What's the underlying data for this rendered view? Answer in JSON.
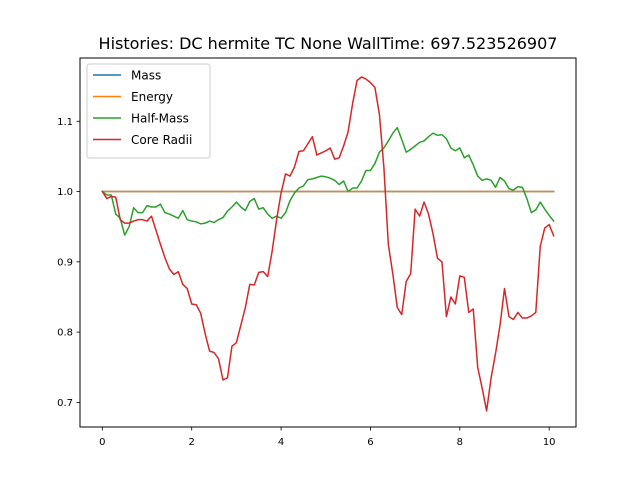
{
  "chart_data": {
    "type": "line",
    "title": "Histories: DC hermite TC None WallTime: 697.523526907",
    "xlabel": "",
    "ylabel": "",
    "xlim": [
      -0.5,
      10.6
    ],
    "ylim": [
      0.665,
      1.19
    ],
    "xticks": [
      0,
      2,
      4,
      6,
      8,
      10
    ],
    "yticks": [
      0.7,
      0.8,
      0.9,
      1.0,
      1.1
    ],
    "xtick_labels": [
      "0",
      "2",
      "4",
      "6",
      "8",
      "10"
    ],
    "ytick_labels": [
      "0.7",
      "0.8",
      "0.9",
      "1.0",
      "1.1"
    ],
    "grid": false,
    "legend_position": "top-left",
    "series": [
      {
        "name": "Mass",
        "color": "#1f77b4",
        "points": [
          [
            0,
            1.0
          ],
          [
            10.1,
            1.0
          ]
        ]
      },
      {
        "name": "Energy",
        "color": "#ff7f0e",
        "points": [
          [
            0,
            1.0
          ],
          [
            10.1,
            1.0
          ]
        ]
      },
      {
        "name": "Half-Mass",
        "color": "#2ca02c",
        "points": [
          [
            0.0,
            1.0
          ],
          [
            0.1,
            0.995
          ],
          [
            0.2,
            0.995
          ],
          [
            0.3,
            0.968
          ],
          [
            0.4,
            0.962
          ],
          [
            0.5,
            0.938
          ],
          [
            0.6,
            0.95
          ],
          [
            0.7,
            0.977
          ],
          [
            0.8,
            0.97
          ],
          [
            0.9,
            0.97
          ],
          [
            1.0,
            0.98
          ],
          [
            1.1,
            0.978
          ],
          [
            1.2,
            0.978
          ],
          [
            1.3,
            0.982
          ],
          [
            1.4,
            0.97
          ],
          [
            1.5,
            0.968
          ],
          [
            1.6,
            0.965
          ],
          [
            1.7,
            0.962
          ],
          [
            1.8,
            0.973
          ],
          [
            1.9,
            0.96
          ],
          [
            2.0,
            0.958
          ],
          [
            2.1,
            0.957
          ],
          [
            2.2,
            0.954
          ],
          [
            2.3,
            0.955
          ],
          [
            2.4,
            0.958
          ],
          [
            2.5,
            0.956
          ],
          [
            2.6,
            0.96
          ],
          [
            2.7,
            0.963
          ],
          [
            2.8,
            0.972
          ],
          [
            2.9,
            0.978
          ],
          [
            3.0,
            0.985
          ],
          [
            3.1,
            0.978
          ],
          [
            3.2,
            0.973
          ],
          [
            3.3,
            0.986
          ],
          [
            3.4,
            0.99
          ],
          [
            3.5,
            0.975
          ],
          [
            3.6,
            0.977
          ],
          [
            3.7,
            0.968
          ],
          [
            3.8,
            0.962
          ],
          [
            3.9,
            0.965
          ],
          [
            4.0,
            0.962
          ],
          [
            4.1,
            0.97
          ],
          [
            4.2,
            0.987
          ],
          [
            4.3,
            0.998
          ],
          [
            4.4,
            1.005
          ],
          [
            4.5,
            1.008
          ],
          [
            4.6,
            1.017
          ],
          [
            4.7,
            1.018
          ],
          [
            4.8,
            1.02
          ],
          [
            4.9,
            1.022
          ],
          [
            5.0,
            1.021
          ],
          [
            5.1,
            1.019
          ],
          [
            5.2,
            1.016
          ],
          [
            5.3,
            1.01
          ],
          [
            5.4,
            1.015
          ],
          [
            5.5,
            1.0
          ],
          [
            5.6,
            1.005
          ],
          [
            5.7,
            1.005
          ],
          [
            5.8,
            1.015
          ],
          [
            5.9,
            1.03
          ],
          [
            6.0,
            1.03
          ],
          [
            6.1,
            1.04
          ],
          [
            6.2,
            1.056
          ],
          [
            6.3,
            1.062
          ],
          [
            6.4,
            1.072
          ],
          [
            6.5,
            1.083
          ],
          [
            6.6,
            1.091
          ],
          [
            6.7,
            1.074
          ],
          [
            6.8,
            1.056
          ],
          [
            6.9,
            1.06
          ],
          [
            7.0,
            1.065
          ],
          [
            7.1,
            1.07
          ],
          [
            7.2,
            1.072
          ],
          [
            7.3,
            1.078
          ],
          [
            7.4,
            1.083
          ],
          [
            7.5,
            1.08
          ],
          [
            7.6,
            1.081
          ],
          [
            7.7,
            1.075
          ],
          [
            7.8,
            1.062
          ],
          [
            7.9,
            1.058
          ],
          [
            8.0,
            1.062
          ],
          [
            8.1,
            1.048
          ],
          [
            8.2,
            1.052
          ],
          [
            8.3,
            1.038
          ],
          [
            8.4,
            1.022
          ],
          [
            8.5,
            1.016
          ],
          [
            8.6,
            1.018
          ],
          [
            8.7,
            1.016
          ],
          [
            8.8,
            1.006
          ],
          [
            8.9,
            1.02
          ],
          [
            9.0,
            1.015
          ],
          [
            9.1,
            1.004
          ],
          [
            9.2,
            1.002
          ],
          [
            9.3,
            1.007
          ],
          [
            9.4,
            1.006
          ],
          [
            9.5,
            0.99
          ],
          [
            9.6,
            0.97
          ],
          [
            9.7,
            0.974
          ],
          [
            9.8,
            0.985
          ],
          [
            9.9,
            0.975
          ],
          [
            10.0,
            0.966
          ],
          [
            10.1,
            0.958
          ]
        ]
      },
      {
        "name": "Core Radii",
        "color": "#d62728",
        "points": [
          [
            0.0,
            1.0
          ],
          [
            0.1,
            0.99
          ],
          [
            0.2,
            0.993
          ],
          [
            0.3,
            0.992
          ],
          [
            0.4,
            0.96
          ],
          [
            0.5,
            0.955
          ],
          [
            0.6,
            0.955
          ],
          [
            0.7,
            0.958
          ],
          [
            0.8,
            0.96
          ],
          [
            0.9,
            0.96
          ],
          [
            1.0,
            0.958
          ],
          [
            1.1,
            0.965
          ],
          [
            1.2,
            0.945
          ],
          [
            1.3,
            0.925
          ],
          [
            1.4,
            0.906
          ],
          [
            1.5,
            0.89
          ],
          [
            1.6,
            0.882
          ],
          [
            1.7,
            0.886
          ],
          [
            1.8,
            0.868
          ],
          [
            1.9,
            0.862
          ],
          [
            2.0,
            0.84
          ],
          [
            2.1,
            0.839
          ],
          [
            2.2,
            0.827
          ],
          [
            2.3,
            0.798
          ],
          [
            2.4,
            0.773
          ],
          [
            2.5,
            0.771
          ],
          [
            2.6,
            0.762
          ],
          [
            2.7,
            0.732
          ],
          [
            2.8,
            0.735
          ],
          [
            2.9,
            0.78
          ],
          [
            3.0,
            0.785
          ],
          [
            3.1,
            0.81
          ],
          [
            3.2,
            0.835
          ],
          [
            3.3,
            0.868
          ],
          [
            3.4,
            0.867
          ],
          [
            3.5,
            0.885
          ],
          [
            3.6,
            0.886
          ],
          [
            3.7,
            0.879
          ],
          [
            3.8,
            0.915
          ],
          [
            3.9,
            0.96
          ],
          [
            4.0,
            0.998
          ],
          [
            4.1,
            1.025
          ],
          [
            4.2,
            1.022
          ],
          [
            4.3,
            1.035
          ],
          [
            4.4,
            1.057
          ],
          [
            4.5,
            1.058
          ],
          [
            4.6,
            1.068
          ],
          [
            4.7,
            1.078
          ],
          [
            4.8,
            1.052
          ],
          [
            4.9,
            1.055
          ],
          [
            5.0,
            1.058
          ],
          [
            5.1,
            1.062
          ],
          [
            5.2,
            1.046
          ],
          [
            5.3,
            1.048
          ],
          [
            5.4,
            1.065
          ],
          [
            5.5,
            1.085
          ],
          [
            5.6,
            1.125
          ],
          [
            5.7,
            1.158
          ],
          [
            5.8,
            1.163
          ],
          [
            5.9,
            1.16
          ],
          [
            6.0,
            1.155
          ],
          [
            6.1,
            1.148
          ],
          [
            6.2,
            1.11
          ],
          [
            6.3,
            1.035
          ],
          [
            6.4,
            0.925
          ],
          [
            6.5,
            0.883
          ],
          [
            6.6,
            0.835
          ],
          [
            6.7,
            0.825
          ],
          [
            6.8,
            0.872
          ],
          [
            6.9,
            0.883
          ],
          [
            7.0,
            0.975
          ],
          [
            7.1,
            0.965
          ],
          [
            7.2,
            0.985
          ],
          [
            7.3,
            0.968
          ],
          [
            7.4,
            0.94
          ],
          [
            7.5,
            0.905
          ],
          [
            7.6,
            0.9
          ],
          [
            7.7,
            0.822
          ],
          [
            7.8,
            0.85
          ],
          [
            7.9,
            0.84
          ],
          [
            8.0,
            0.88
          ],
          [
            8.1,
            0.878
          ],
          [
            8.2,
            0.828
          ],
          [
            8.3,
            0.833
          ],
          [
            8.4,
            0.75
          ],
          [
            8.5,
            0.72
          ],
          [
            8.6,
            0.688
          ],
          [
            8.7,
            0.735
          ],
          [
            8.8,
            0.77
          ],
          [
            8.9,
            0.81
          ],
          [
            9.0,
            0.862
          ],
          [
            9.1,
            0.822
          ],
          [
            9.2,
            0.818
          ],
          [
            9.3,
            0.828
          ],
          [
            9.4,
            0.82
          ],
          [
            9.5,
            0.82
          ],
          [
            9.6,
            0.823
          ],
          [
            9.7,
            0.828
          ],
          [
            9.8,
            0.922
          ],
          [
            9.9,
            0.948
          ],
          [
            10.0,
            0.953
          ],
          [
            10.1,
            0.937
          ]
        ]
      }
    ]
  }
}
